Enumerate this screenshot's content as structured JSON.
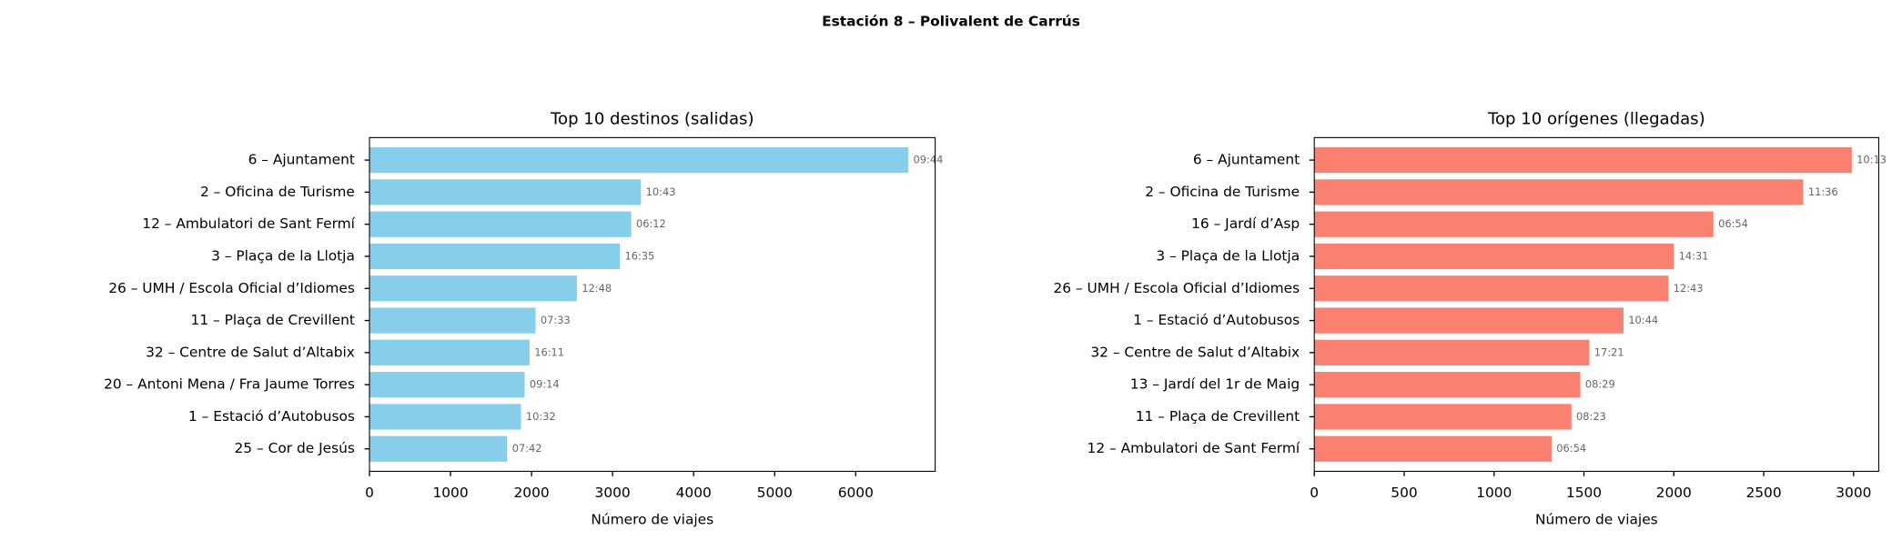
{
  "title": "Estación 8 – Polivalent de Carrús",
  "chart_data": [
    {
      "type": "barh",
      "title": "Top 10 destinos (salidas)",
      "x_label": "Número de viajes",
      "categories": [
        "6 – Ajuntament",
        "2 – Oficina de Turisme",
        "12 – Ambulatori de Sant Fermí",
        "3 – Plaça de la Llotja",
        "26 – UMH / Escola Oficial d’Idiomes",
        "11 – Plaça de Crevillent",
        "32 – Centre de Salut d’Altabix",
        "20 – Antoni Mena / Fra Jaume Torres",
        "1 – Estació d’Autobusos",
        "25 – Cor de Jesús"
      ],
      "values": [
        6650,
        3350,
        3230,
        3090,
        2560,
        2050,
        1975,
        1915,
        1870,
        1700
      ],
      "annotations": [
        "09:44",
        "10:43",
        "06:12",
        "16:35",
        "12:48",
        "07:33",
        "16:11",
        "09:14",
        "10:32",
        "07:42"
      ],
      "color": "#87ceeb",
      "xlim": [
        0,
        6980
      ],
      "xticks": [
        0,
        1000,
        2000,
        3000,
        4000,
        5000,
        6000
      ]
    },
    {
      "type": "barh",
      "title": "Top 10 orígenes (llegadas)",
      "x_label": "Número de viajes",
      "categories": [
        "6 – Ajuntament",
        "2 – Oficina de Turisme",
        "16 – Jardí d’Asp",
        "3 – Plaça de la Llotja",
        "26 – UMH / Escola Oficial d’Idiomes",
        "1 – Estació d’Autobusos",
        "32 – Centre de Salut d’Altabix",
        "13 – Jardí del 1r de Maig",
        "11 – Plaça de Crevillent",
        "12 – Ambulatori de Sant Fermí"
      ],
      "values": [
        2990,
        2720,
        2220,
        2000,
        1970,
        1720,
        1530,
        1480,
        1430,
        1320
      ],
      "annotations": [
        "10:13",
        "11:36",
        "06:54",
        "14:31",
        "12:43",
        "10:44",
        "17:21",
        "08:29",
        "08:23",
        "06:54"
      ],
      "color": "#fa8072",
      "xlim": [
        0,
        3140
      ],
      "xticks": [
        0,
        500,
        1000,
        1500,
        2000,
        2500,
        3000
      ]
    }
  ]
}
